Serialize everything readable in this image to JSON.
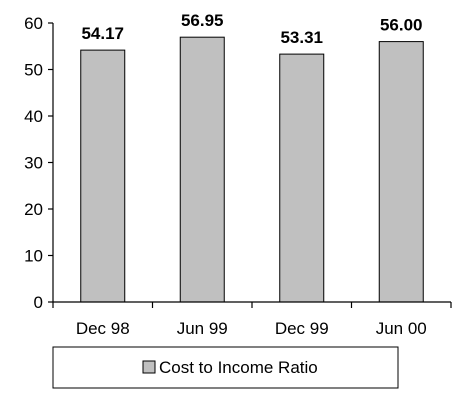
{
  "chart_data": {
    "type": "bar",
    "categories": [
      "Dec 98",
      "Jun 99",
      "Dec 99",
      "Jun 00"
    ],
    "series": [
      {
        "name": "Cost to Income Ratio",
        "values": [
          54.17,
          56.95,
          53.31,
          56.0
        ],
        "data_labels": [
          "54.17",
          "56.95",
          "53.31",
          "56.00"
        ],
        "color": "#c0c0c0"
      }
    ],
    "y_ticks": [
      "0",
      "10",
      "20",
      "30",
      "40",
      "50",
      "60"
    ],
    "ylim": [
      0,
      60
    ],
    "grid": false,
    "legend": {
      "position": "bottom",
      "label": "Cost to Income Ratio"
    }
  }
}
